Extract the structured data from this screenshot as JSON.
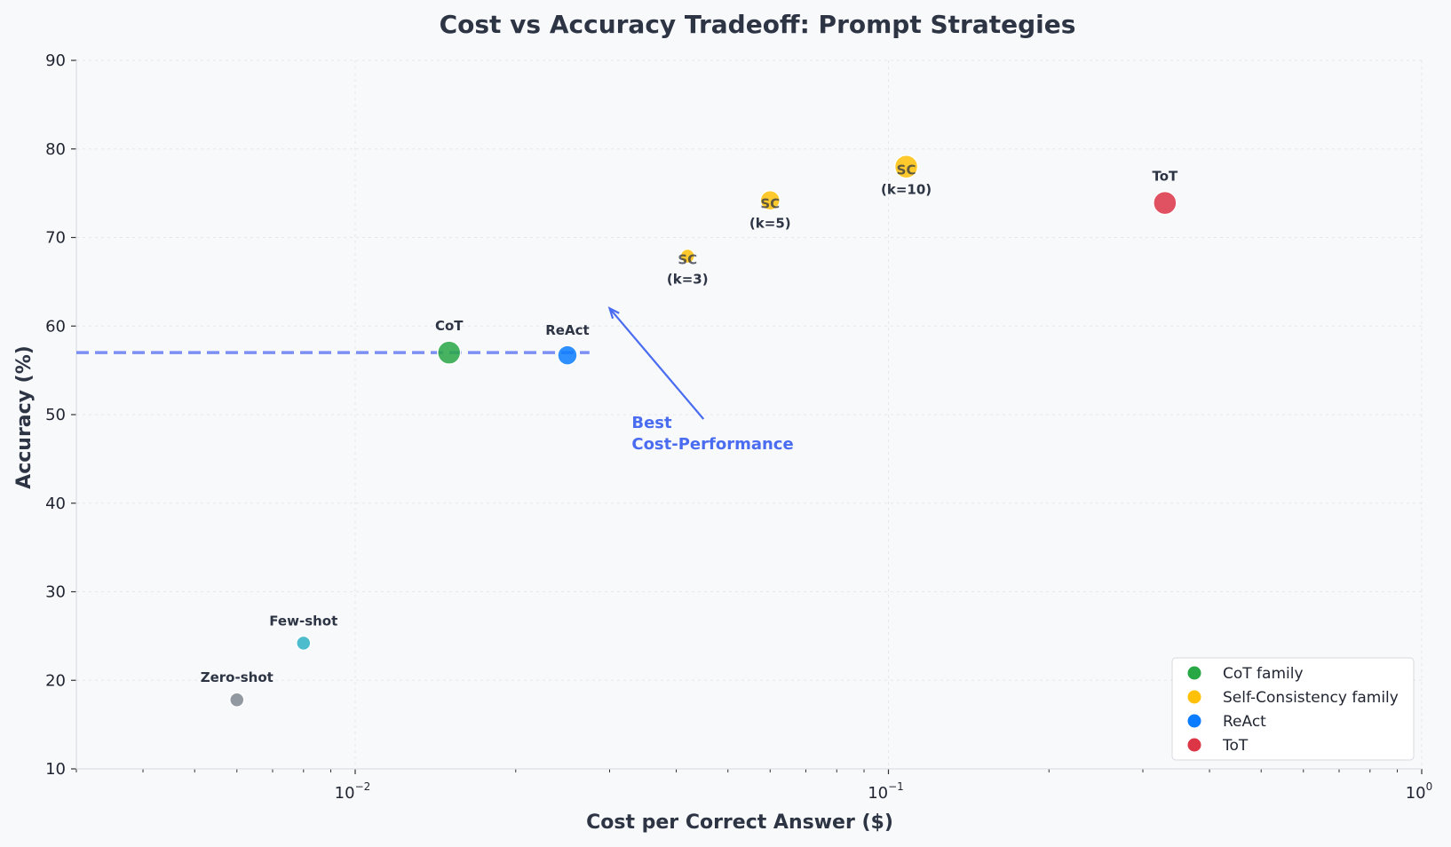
{
  "chart_data": {
    "type": "scatter",
    "title": "Cost vs Accuracy Tradeoff: Prompt Strategies",
    "xlabel": "Cost per Correct Answer ($)",
    "ylabel": "Accuracy (%)",
    "xscale": "log",
    "xlim": [
      0.003,
      1
    ],
    "ylim": [
      10,
      90
    ],
    "yticks": [
      10,
      20,
      30,
      40,
      50,
      60,
      70,
      80,
      90
    ],
    "xticks": [
      {
        "value": 0.01,
        "base": "10",
        "exp": "−2"
      },
      {
        "value": 0.1,
        "base": "10",
        "exp": "−1"
      },
      {
        "value": 1,
        "base": "10",
        "exp": "0"
      }
    ],
    "grid": true,
    "points": [
      {
        "label_lines": [
          "Zero-shot"
        ],
        "x": 0.006,
        "y": 17.8,
        "size": "small",
        "color": "#808891"
      },
      {
        "label_lines": [
          "Few-shot"
        ],
        "x": 0.008,
        "y": 24.2,
        "size": "small",
        "color": "#2fb2c4"
      },
      {
        "label_lines": [
          "CoT"
        ],
        "x": 0.015,
        "y": 57.0,
        "size": "large",
        "color": "#28a745"
      },
      {
        "label_lines": [
          "ReAct"
        ],
        "x": 0.025,
        "y": 56.7,
        "size": "medium",
        "color": "#0a7cff"
      },
      {
        "label_lines": [
          "SC",
          "(k=3)"
        ],
        "x": 0.042,
        "y": 67.9,
        "size": "small",
        "color": "#ffc107"
      },
      {
        "label_lines": [
          "SC",
          "(k=5)"
        ],
        "x": 0.06,
        "y": 74.2,
        "size": "medium",
        "color": "#ffc107"
      },
      {
        "label_lines": [
          "SC",
          "(k=10)"
        ],
        "x": 0.108,
        "y": 78.0,
        "size": "large",
        "color": "#ffc107"
      },
      {
        "label_lines": [
          "ToT"
        ],
        "x": 0.33,
        "y": 73.9,
        "size": "large",
        "color": "#dc3545"
      }
    ],
    "reference_line": {
      "y": 57.0,
      "x_end": 0.0275,
      "color": "#7b8ff4",
      "style": "dashed"
    },
    "annotation": {
      "text_lines": [
        "Best",
        "Cost-Performance"
      ],
      "text_x": 0.033,
      "text_y": 48.5,
      "arrow_from": [
        0.045,
        49.5
      ],
      "arrow_to": [
        0.03,
        62.0
      ],
      "color": "#4a6cf0"
    },
    "legend": {
      "placement": "lower-right",
      "entries": [
        {
          "label": "CoT family",
          "color": "#28a745"
        },
        {
          "label": "Self-Consistency family",
          "color": "#ffc107"
        },
        {
          "label": "ReAct",
          "color": "#0a7cff"
        },
        {
          "label": "ToT",
          "color": "#dc3545"
        }
      ]
    }
  }
}
